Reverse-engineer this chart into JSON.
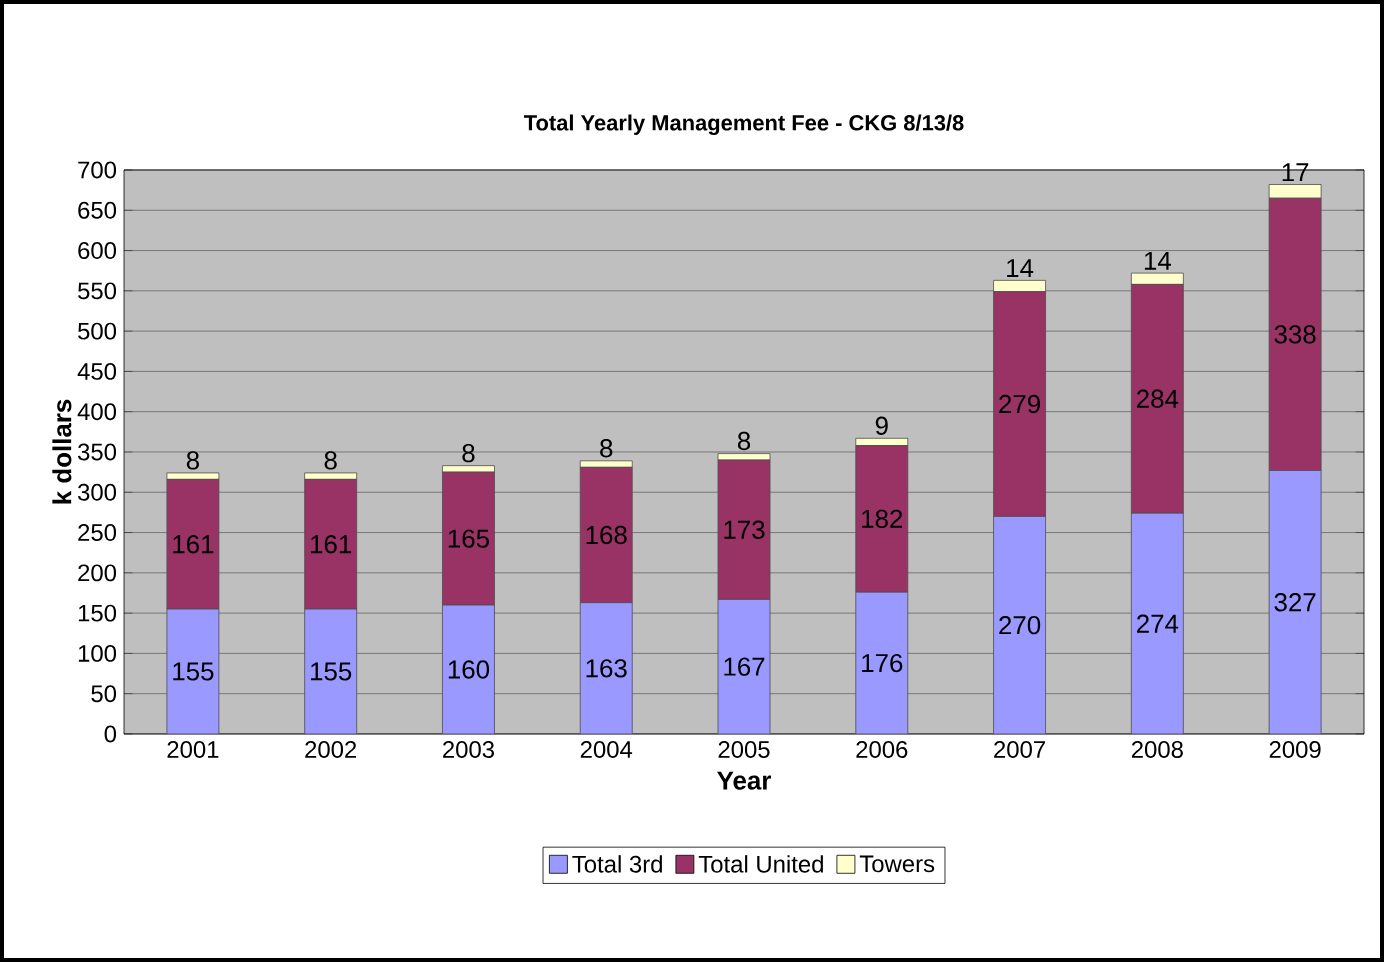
{
  "chart_data": {
    "type": "bar",
    "stacked": true,
    "title": "Total Yearly Management Fee - CKG 8/13/8",
    "xlabel": "Year",
    "ylabel": "k dollars",
    "categories": [
      "2001",
      "2002",
      "2003",
      "2004",
      "2005",
      "2006",
      "2007",
      "2008",
      "2009"
    ],
    "series": [
      {
        "name": "Total 3rd",
        "color": "#9999ff",
        "values": [
          155,
          155,
          160,
          163,
          167,
          176,
          270,
          274,
          327
        ]
      },
      {
        "name": "Total United",
        "color": "#993366",
        "values": [
          161,
          161,
          165,
          168,
          173,
          182,
          279,
          284,
          338
        ]
      },
      {
        "name": "Towers",
        "color": "#ffffcc",
        "values": [
          8,
          8,
          8,
          8,
          8,
          9,
          14,
          14,
          17
        ]
      }
    ],
    "ylim": [
      0,
      700
    ],
    "yticks": [
      0,
      50,
      100,
      150,
      200,
      250,
      300,
      350,
      400,
      450,
      500,
      550,
      600,
      650,
      700
    ],
    "grid": "y",
    "legend": "bottom",
    "data_labels": true
  }
}
